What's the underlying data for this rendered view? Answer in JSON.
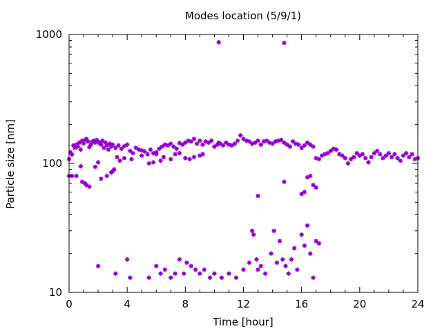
{
  "chart_data": {
    "type": "scatter",
    "title": "Modes location (5/9/1)",
    "xlabel": "Time [hour]",
    "ylabel": "Particle size [nm]",
    "xlim": [
      0,
      24
    ],
    "ylim": [
      10,
      1000
    ],
    "yscale": "log",
    "grid": false,
    "legend": "none",
    "marker": "asterisk",
    "color": "#9400d3",
    "xticks": [
      0,
      4,
      8,
      12,
      16,
      20,
      24
    ],
    "xtick_labels": [
      "0",
      "4",
      "8",
      "12",
      "16",
      "20",
      "24"
    ],
    "yticks": [
      10,
      100,
      1000
    ],
    "ytick_labels": [
      "10",
      "100",
      "1000"
    ],
    "series": [
      {
        "x": [
          0.0,
          0.1,
          0.2,
          0.3,
          0.4,
          0.5,
          0.6,
          0.7,
          0.8,
          0.9,
          1.0,
          1.1,
          1.2,
          1.3,
          1.4,
          1.5,
          1.6,
          1.7,
          1.8,
          1.9,
          2.0,
          2.1,
          2.2,
          2.3,
          2.4,
          2.5,
          2.6,
          2.7,
          2.8,
          2.9,
          3.0,
          3.2,
          3.4,
          3.6,
          3.8,
          4.0,
          4.2,
          4.4,
          4.6,
          4.8,
          5.0,
          5.2,
          5.4,
          5.6,
          5.8,
          6.0,
          6.2,
          6.4,
          6.6,
          6.8,
          7.0,
          7.2,
          7.4,
          7.6,
          7.8,
          8.0,
          8.2,
          8.4,
          8.6,
          8.8,
          9.0,
          9.2,
          9.4,
          9.6,
          9.8,
          10.0,
          10.2,
          10.4,
          10.6,
          10.8,
          11.0,
          11.2,
          11.4,
          11.6,
          11.8,
          12.0,
          12.2,
          12.4,
          12.6,
          12.8,
          13.0,
          13.2,
          13.4,
          13.6,
          13.8,
          14.0,
          14.2,
          14.4,
          14.6,
          14.8,
          15.0,
          15.2,
          15.4,
          15.6,
          15.8,
          16.0,
          16.2,
          16.4,
          16.6,
          16.8,
          17.0,
          17.2,
          17.4,
          17.6,
          17.8,
          18.0,
          18.2,
          18.4,
          18.6,
          18.8,
          19.0,
          19.2,
          19.4,
          19.6,
          19.8,
          20.0,
          20.2,
          20.4,
          20.6,
          20.8,
          21.0,
          21.2,
          21.4,
          21.6,
          21.8,
          22.0,
          22.2,
          22.4,
          22.6,
          22.8,
          23.0,
          23.2,
          23.4,
          23.6,
          23.8,
          24.0
        ],
        "y": [
          108,
          122,
          117,
          138,
          132,
          140,
          135,
          145,
          128,
          150,
          143,
          152,
          155,
          148,
          134,
          140,
          147,
          150,
          145,
          152,
          148,
          144,
          140,
          150,
          132,
          145,
          138,
          128,
          142,
          135,
          140,
          132,
          138,
          130,
          136,
          140,
          125,
          120,
          132,
          128,
          126,
          124,
          118,
          128,
          120,
          122,
          130,
          135,
          140,
          138,
          142,
          135,
          130,
          144,
          140,
          145,
          150,
          148,
          155,
          142,
          150,
          140,
          148,
          145,
          150,
          135,
          140,
          142,
          138,
          145,
          140,
          138,
          142,
          150,
          165,
          155,
          150,
          148,
          142,
          145,
          150,
          140,
          148,
          150,
          145,
          142,
          148,
          150,
          152,
          145,
          140,
          135,
          148,
          142,
          140,
          132,
          138,
          145,
          140,
          135,
          110,
          108,
          115,
          118,
          120,
          125,
          130,
          128,
          118,
          115,
          110,
          100,
          108,
          112,
          120,
          115,
          118,
          110,
          102,
          112,
          120,
          125,
          118,
          110,
          115,
          120,
          112,
          118,
          110,
          105,
          115,
          120,
          112,
          118,
          108,
          110
        ]
      },
      {
        "x": [
          0.0,
          0.2,
          0.5,
          0.8,
          0.9,
          1.1,
          1.2,
          1.4,
          1.8,
          2.0,
          2.2,
          2.6,
          2.9,
          3.0,
          3.1,
          3.3,
          3.5,
          3.8,
          4.3,
          5.0,
          5.5,
          5.8,
          6.0,
          6.3,
          6.5,
          7.0,
          7.3,
          7.6,
          8.0,
          8.3,
          8.6,
          9.0,
          9.2,
          10.3,
          14.8,
          16.0,
          16.2,
          16.4,
          16.6,
          16.8,
          17.0
        ],
        "y": [
          80,
          80,
          80,
          95,
          72,
          70,
          68,
          66,
          94,
          102,
          76,
          80,
          85,
          87,
          90,
          112,
          105,
          110,
          108,
          115,
          100,
          102,
          118,
          105,
          112,
          108,
          118,
          120,
          110,
          108,
          112,
          115,
          118,
          145,
          72,
          58,
          60,
          78,
          80,
          68,
          65
        ]
      },
      {
        "x": [
          2.0,
          3.2,
          4.0,
          4.2,
          5.5,
          6.0,
          6.3,
          6.6,
          7.0,
          7.3,
          7.6,
          7.9,
          8.1,
          8.4,
          8.7,
          9.0,
          9.3,
          9.7,
          10.0,
          10.5,
          11.0,
          11.5,
          12.0,
          12.4,
          12.6,
          12.7,
          12.9,
          13.0,
          13.2,
          13.5,
          13.9,
          14.1,
          14.3,
          14.5,
          14.7,
          14.9,
          15.1,
          15.3,
          15.5,
          15.7,
          16.0,
          16.2,
          16.4,
          16.6,
          16.8,
          17.0,
          17.2
        ],
        "y": [
          16,
          14,
          18,
          13,
          13,
          16,
          14,
          15,
          13,
          14,
          18,
          14,
          17,
          16,
          15,
          14,
          15,
          13,
          14,
          13,
          14,
          13,
          15,
          17,
          30,
          28,
          18,
          15,
          16,
          14,
          20,
          30,
          17,
          25,
          18,
          16,
          14,
          18,
          22,
          15,
          28,
          23,
          33,
          20,
          13,
          25,
          24
        ]
      },
      {
        "x": [
          10.3,
          14.8,
          13.0
        ],
        "y": [
          870,
          860,
          56
        ]
      }
    ]
  }
}
